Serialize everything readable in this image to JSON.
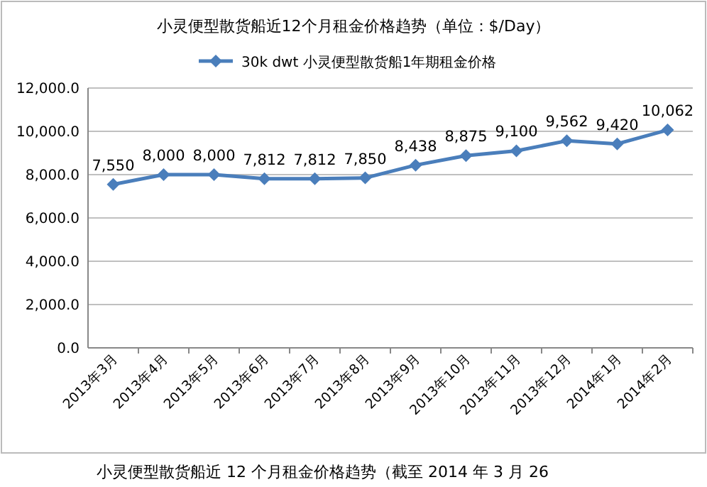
{
  "chart_data": {
    "type": "line",
    "title": "小灵便型散货船近12个月租金价格趋势（单位：$/Day）",
    "categories": [
      "2013年3月",
      "2013年4月",
      "2013年5月",
      "2013年6月",
      "2013年7月",
      "2013年8月",
      "2013年9月",
      "2013年10月",
      "2013年11月",
      "2013年12月",
      "2014年1月",
      "2014年2月"
    ],
    "series": [
      {
        "name": "30k dwt 小灵便型散货船1年期租金价格",
        "color": "#4a7ebb",
        "values": [
          7550,
          8000,
          8000,
          7812,
          7812,
          7850,
          8438,
          8875,
          9100,
          9562,
          9420,
          10062
        ],
        "value_labels": [
          "7,550",
          "8,000",
          "8,000",
          "7,812",
          "7,812",
          "7,850",
          "8,438",
          "8,875",
          "9,100",
          "9,562",
          "9,420",
          "10,062"
        ]
      }
    ],
    "ylim": [
      0,
      12000
    ],
    "yticks": [
      {
        "value": 0,
        "label": "0.0"
      },
      {
        "value": 2000,
        "label": "2,000.0"
      },
      {
        "value": 4000,
        "label": "4,000.0"
      },
      {
        "value": 6000,
        "label": "6,000.0"
      },
      {
        "value": 8000,
        "label": "8,000.0"
      },
      {
        "value": 10000,
        "label": "10,000.0"
      },
      {
        "value": 12000,
        "label": "12,000.0"
      }
    ],
    "grid": "y",
    "legend": "top",
    "marker": "diamond",
    "line_style": "solid",
    "annotations": [
      "小灵便型散货船近 12 个月租金价格趋势（截至 2014 年 3 月 26"
    ]
  }
}
